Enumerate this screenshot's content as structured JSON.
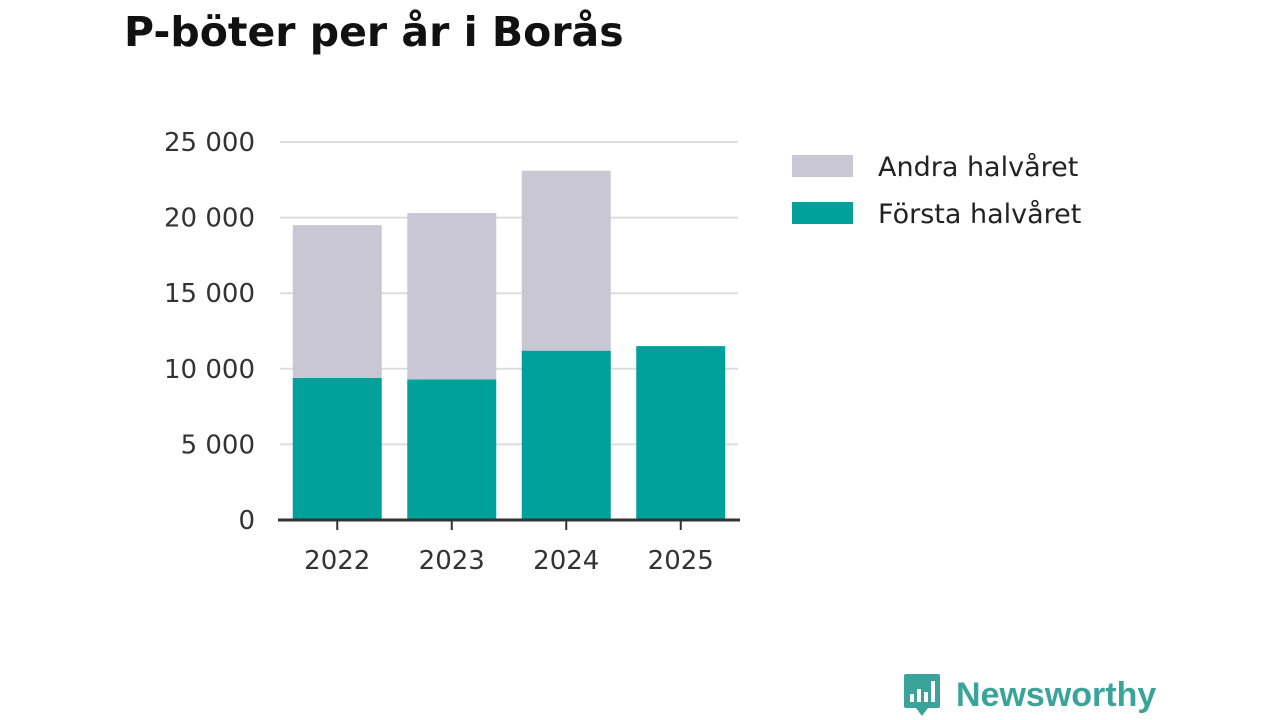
{
  "chart_data": {
    "type": "bar",
    "stacked": true,
    "title": "P-böter per år i Borås",
    "categories": [
      "2022",
      "2023",
      "2024",
      "2025"
    ],
    "series": [
      {
        "name": "Första halvåret",
        "color": "#00a19a",
        "values": [
          9400,
          9300,
          11200,
          11500
        ]
      },
      {
        "name": "Andra halvåret",
        "color": "#c8c7d3",
        "values": [
          10100,
          11000,
          11900,
          0
        ]
      }
    ],
    "legend_order": [
      "Andra halvåret",
      "Första halvåret"
    ],
    "ylim": [
      0,
      25000
    ],
    "yticks": [
      0,
      5000,
      10000,
      15000,
      20000,
      25000
    ],
    "ytick_labels": [
      "0",
      "5 000",
      "10 000",
      "15 000",
      "20 000",
      "25 000"
    ],
    "grid": true,
    "legend_position": "right",
    "xlabel": "",
    "ylabel": ""
  },
  "brand": {
    "name": "Newsworthy",
    "color": "#3aa39a"
  }
}
